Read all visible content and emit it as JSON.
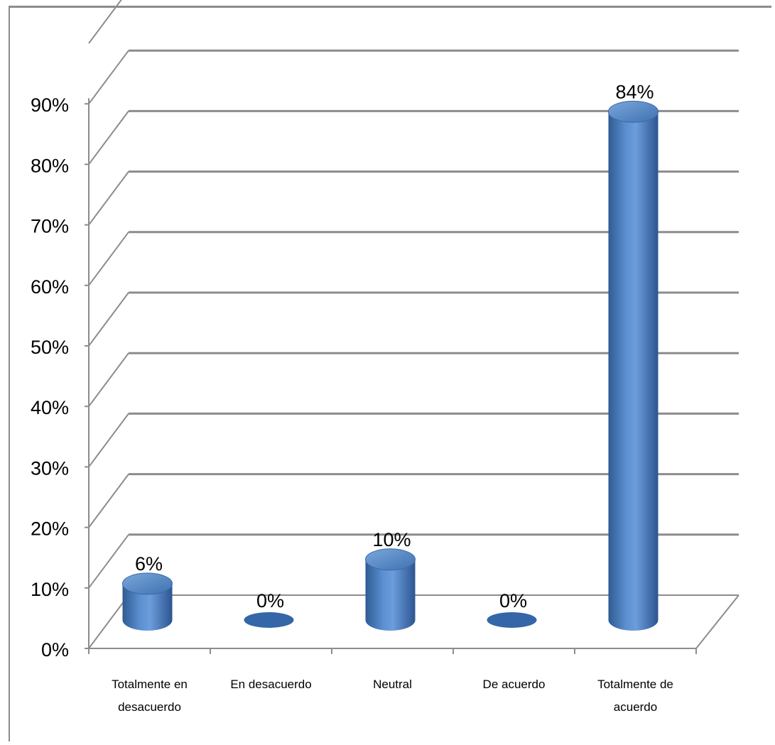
{
  "chart_data": {
    "type": "bar",
    "style": "3d-cylinder",
    "categories": [
      [
        "Totalmente en",
        "desacuerdo"
      ],
      [
        "En desacuerdo"
      ],
      [
        "Neutral"
      ],
      [
        "De acuerdo"
      ],
      [
        "Totalmente de",
        "acuerdo"
      ]
    ],
    "values": [
      6,
      0,
      10,
      0,
      84
    ],
    "data_labels": [
      "6%",
      "0%",
      "10%",
      "0%",
      "84%"
    ],
    "y_tick_labels": [
      "0%",
      "10%",
      "20%",
      "30%",
      "40%",
      "50%",
      "60%",
      "70%",
      "80%",
      "90%"
    ],
    "ylim": [
      0,
      100
    ],
    "grid": true,
    "legend": "none",
    "title": "",
    "xlabel": "",
    "ylabel": "",
    "colors": {
      "bar": "#4a7ebb",
      "bar_dark": "#2f5b92",
      "bar_light": "#7aa6dc",
      "grid": "#8c8c8c",
      "axis": "#8c8c8c"
    }
  }
}
